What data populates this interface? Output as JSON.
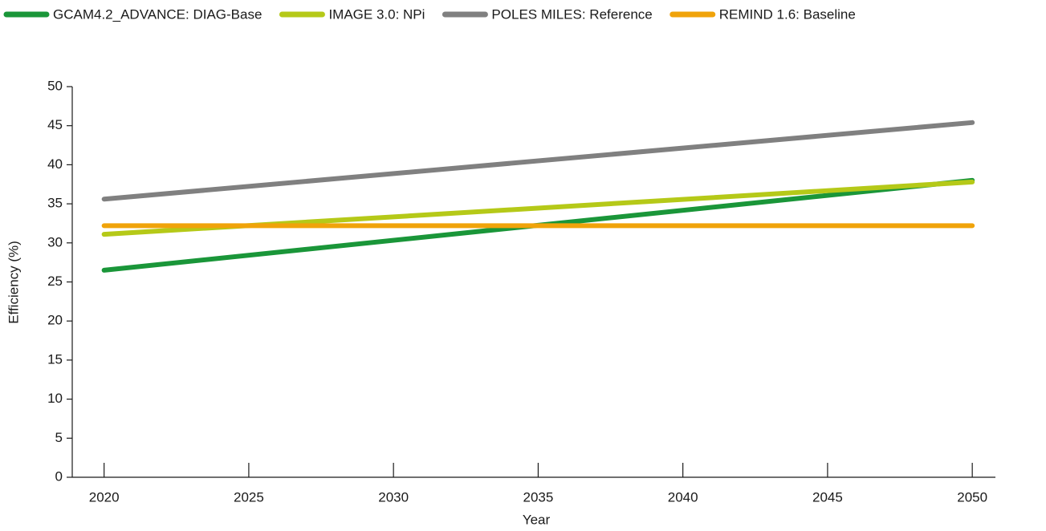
{
  "chart_data": {
    "type": "line",
    "xlabel": "Year",
    "ylabel": "Efficiency (%)",
    "x": [
      2020,
      2050
    ],
    "series": [
      {
        "name": "GCAM4.2_ADVANCE: DIAG-Base",
        "color": "#1a9639",
        "values": [
          26.5,
          38.0
        ]
      },
      {
        "name": "IMAGE 3.0: NPi",
        "color": "#b5c918",
        "values": [
          31.1,
          37.8
        ]
      },
      {
        "name": "POLES MILES: Reference",
        "color": "#808080",
        "values": [
          35.6,
          45.4
        ]
      },
      {
        "name": "REMIND 1.6: Baseline",
        "color": "#f0a30a",
        "values": [
          32.2,
          32.2
        ]
      }
    ],
    "xlim": [
      2018.9,
      2050.8
    ],
    "xticks": [
      2020,
      2025,
      2030,
      2035,
      2040,
      2045,
      2050
    ],
    "ylim": [
      0,
      50
    ],
    "yticks": [
      0,
      5,
      10,
      15,
      20,
      25,
      30,
      35,
      40,
      45,
      50
    ],
    "grid": false,
    "legend": "top"
  }
}
